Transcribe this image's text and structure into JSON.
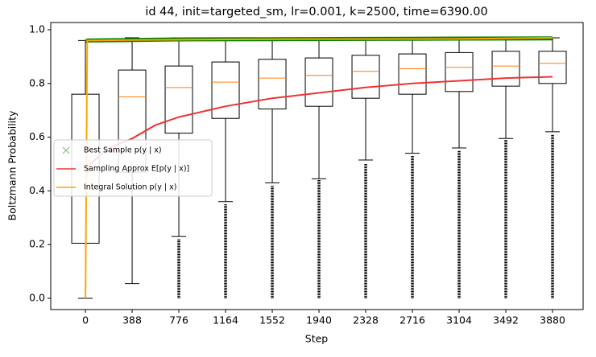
{
  "chart_data": {
    "type": "boxplot",
    "title": "id 44, init=targeted_sm, lr=0.001, k=2500, time=6390.00",
    "xlabel": "Step",
    "ylabel": "Boltzmann Probability",
    "xlim": [
      -288,
      4134
    ],
    "ylim": [
      -0.042,
      1.027
    ],
    "xticks": [
      0,
      388,
      776,
      1164,
      1552,
      1940,
      2328,
      2716,
      3104,
      3492,
      3880
    ],
    "yticks": [
      {
        "value": 0,
        "label": "0.0"
      },
      {
        "value": 0.2,
        "label": "0.2"
      },
      {
        "value": 0.4,
        "label": "0.4"
      },
      {
        "value": 0.6,
        "label": "0.6"
      },
      {
        "value": 0.8,
        "label": "0.8"
      },
      {
        "value": 1,
        "label": "1.0"
      }
    ],
    "boxes": {
      "color": "#000000",
      "median_color": "#ff7f0e",
      "whislo": [
        0,
        0.055,
        0.23,
        0.36,
        0.43,
        0.445,
        0.515,
        0.54,
        0.56,
        0.595,
        0.62
      ],
      "q1": [
        0.205,
        0.47,
        0.615,
        0.67,
        0.705,
        0.715,
        0.745,
        0.76,
        0.77,
        0.79,
        0.8
      ],
      "med": [
        null,
        0.75,
        0.785,
        0.805,
        0.82,
        0.83,
        0.845,
        0.855,
        0.86,
        0.865,
        0.875
      ],
      "q3": [
        0.76,
        0.85,
        0.865,
        0.88,
        0.89,
        0.895,
        0.905,
        0.91,
        0.915,
        0.92,
        0.92
      ],
      "whishi": [
        0.96,
        0.97,
        0.97,
        0.97,
        0.97,
        0.97,
        0.97,
        0.97,
        0.97,
        0.97,
        0.97
      ],
      "flier_lo": [
        null,
        null,
        0,
        0,
        0,
        0,
        0,
        0,
        0,
        0,
        0
      ],
      "flier_hi": [
        null,
        null,
        0.22,
        0.35,
        0.42,
        0.44,
        0.5,
        0.53,
        0.55,
        0.59,
        0.61
      ]
    },
    "series": [
      {
        "name": "Best Sample p(y | x)",
        "color": "#008000",
        "legend_color": "#80c080",
        "marker": "x",
        "x": [
          0,
          20,
          388,
          776,
          1552,
          2328,
          3104,
          3880
        ],
        "values": [
          0.955,
          0.96,
          0.962,
          0.964,
          0.965,
          0.966,
          0.967,
          0.968
        ]
      },
      {
        "name": "Sampling Approx E[p(y | x)]",
        "color": "#ee3333",
        "x": [
          0,
          40,
          194,
          388,
          582,
          776,
          1164,
          1552,
          1940,
          2328,
          2716,
          3104,
          3492,
          3880
        ],
        "values": [
          0.45,
          0.5,
          0.56,
          0.595,
          0.645,
          0.675,
          0.715,
          0.745,
          0.765,
          0.785,
          0.8,
          0.81,
          0.82,
          0.825
        ]
      },
      {
        "name": "Integral Solution p(y | x)",
        "color": "#ffa500",
        "x": [
          0,
          15,
          388,
          1552,
          3104,
          3880
        ],
        "values": [
          0,
          0.96,
          0.962,
          0.965,
          0.966,
          0.97
        ]
      }
    ]
  }
}
